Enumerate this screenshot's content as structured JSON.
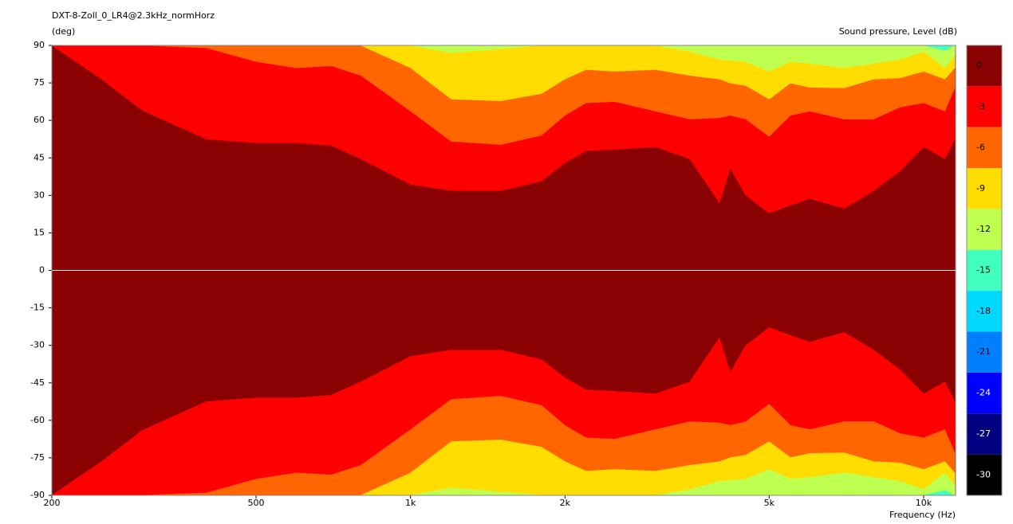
{
  "chart_data": {
    "type": "contour",
    "title": "DXT-8-Zoll_0_LR4@2.3kHz_normHorz",
    "ylabel": "(deg)",
    "zlabel": "Sound pressure, Level  (dB)",
    "xlabel": "Frequency  (Hz)",
    "log_x": true,
    "xlim": [
      200,
      11540
    ],
    "xticks": [
      200,
      500,
      {
        "value": 1000,
        "label": "1k"
      },
      {
        "value": 2000,
        "label": "2k"
      },
      {
        "value": 5000,
        "label": "5k"
      },
      {
        "value": 10000,
        "label": "10k"
      }
    ],
    "ylim": [
      -90,
      90
    ],
    "yticks": [
      -90,
      -75,
      -60,
      -45,
      -30,
      -15,
      0,
      15,
      30,
      45,
      60,
      75,
      90
    ],
    "x": [
      200,
      250,
      300,
      400,
      500,
      600,
      700,
      800,
      1000,
      1200,
      1500,
      1800,
      2000,
      2200,
      2500,
      3000,
      3500,
      4000,
      4200,
      4500,
      5000,
      5500,
      6000,
      7000,
      8000,
      9000,
      10000,
      11000,
      11500
    ],
    "levels": [
      {
        "value": 0,
        "color": "#8b0000"
      },
      {
        "value": -3,
        "color": "#ff0000",
        "values": [
          90,
          76.5,
          64,
          52.5,
          51,
          51,
          50,
          44.6,
          34.4,
          31.9,
          31.9,
          35.7,
          43,
          47.8,
          48.4,
          49.4,
          44.6,
          27,
          40.8,
          30,
          22.9,
          26,
          28.7,
          24.8,
          31.9,
          39.8,
          49.4,
          44.6,
          52.5
        ]
      },
      {
        "value": -6,
        "color": "#ff6600",
        "values": [
          90,
          90,
          90,
          89,
          83.5,
          81,
          81.8,
          78,
          63.7,
          51.6,
          50.3,
          54,
          62,
          67,
          67.5,
          63.7,
          60.5,
          61,
          62,
          60.5,
          53.5,
          62,
          63.7,
          60.5,
          60.5,
          65.3,
          67,
          63.7,
          73
        ]
      },
      {
        "value": -9,
        "color": "#ffdd00",
        "values": [
          90,
          90,
          90,
          90,
          90,
          90,
          90,
          90,
          81,
          68.5,
          67.8,
          70.7,
          76.5,
          80.3,
          79.6,
          80.3,
          78,
          76.5,
          74.9,
          73.9,
          68.5,
          74.9,
          73.2,
          73,
          76.5,
          77,
          79.6,
          76.5,
          81
        ]
      },
      {
        "value": -12,
        "color": "#bfff4f",
        "values": [
          90,
          90,
          90,
          90,
          90,
          90,
          90,
          90,
          90,
          87,
          88.6,
          90,
          90,
          90,
          90,
          90,
          87.6,
          84.4,
          84,
          83.5,
          79.6,
          83.5,
          82.8,
          81,
          82.8,
          84.4,
          87.6,
          81,
          86
        ]
      },
      {
        "value": -15,
        "color": "#40ffbf",
        "values": [
          90,
          90,
          90,
          90,
          90,
          90,
          90,
          90,
          90,
          90,
          90,
          90,
          90,
          90,
          90,
          90,
          90,
          90,
          90,
          90,
          90,
          90,
          90,
          90,
          90,
          90,
          90,
          88,
          90
        ]
      },
      {
        "value": -18,
        "color": "#00d9ff"
      },
      {
        "value": -21,
        "color": "#0080ff"
      },
      {
        "value": -24,
        "color": "#0000ff"
      },
      {
        "value": -27,
        "color": "#000080"
      },
      {
        "value": -30,
        "color": "#000000"
      }
    ]
  }
}
